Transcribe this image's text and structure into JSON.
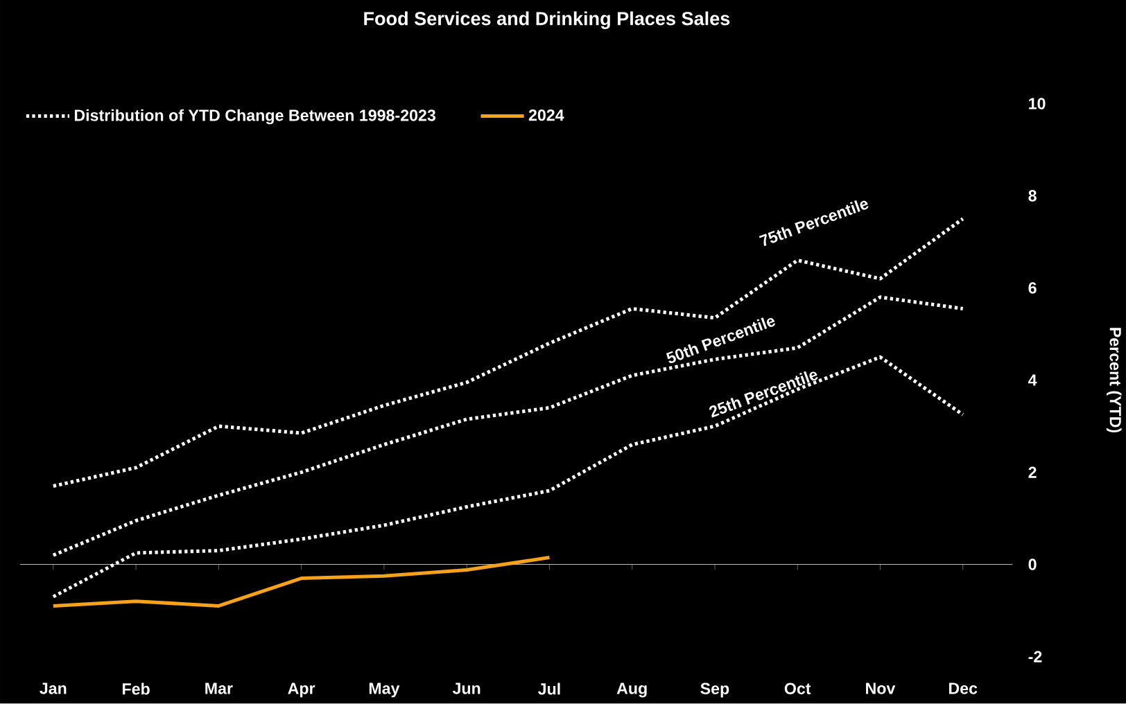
{
  "chart_data": {
    "type": "line",
    "title": "Food Services and Drinking Places Sales",
    "ylabel": "Percent (YTD)",
    "categories": [
      "Jan",
      "Feb",
      "Mar",
      "Apr",
      "May",
      "Jun",
      "Jul",
      "Aug",
      "Sep",
      "Oct",
      "Nov",
      "Dec"
    ],
    "series": [
      {
        "name": "Distribution of YTD Change Between 1998-2023",
        "color": "#ffffff",
        "line_style": "dotted",
        "values": [
          1.7,
          2.1,
          3.0,
          2.85,
          3.45,
          3.95,
          4.8,
          5.55,
          5.35,
          6.6,
          6.2,
          7.5
        ]
      },
      {
        "color": "#ffffff",
        "line_style": "dotted",
        "values": [
          0.2,
          0.95,
          1.5,
          2.0,
          2.6,
          3.15,
          3.4,
          4.1,
          4.45,
          4.7,
          5.8,
          5.55
        ]
      },
      {
        "color": "#ffffff",
        "line_style": "dotted",
        "values": [
          -0.7,
          0.25,
          0.3,
          0.55,
          0.85,
          1.25,
          1.6,
          2.6,
          3.0,
          3.8,
          4.5,
          3.25
        ]
      },
      {
        "name": "2024",
        "color": "#f7a21b",
        "line_style": "solid",
        "values": [
          -0.9,
          -0.8,
          -0.9,
          -0.3,
          -0.25,
          -0.12,
          0.15,
          null,
          null,
          null,
          null,
          null
        ]
      }
    ],
    "ylim": [
      -2,
      10
    ],
    "yticks": [
      -2,
      0,
      2,
      4,
      6,
      8,
      10
    ],
    "legend": "top left",
    "marker": "none",
    "annotations": [
      "75th Percentile",
      "50th Percentile",
      "25th Percentile"
    ]
  }
}
